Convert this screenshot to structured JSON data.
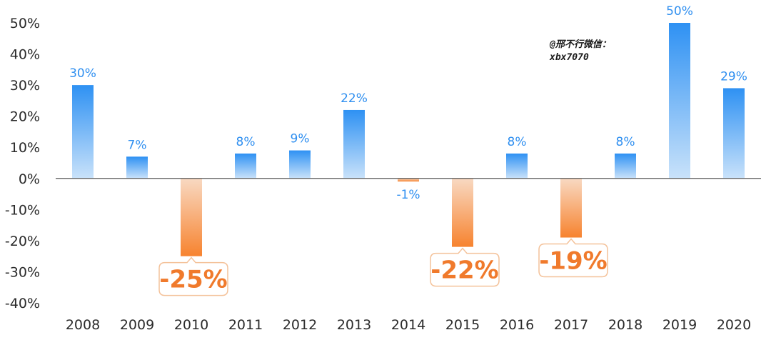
{
  "chart_data": {
    "type": "bar",
    "categories": [
      "2008",
      "2009",
      "2010",
      "2011",
      "2012",
      "2013",
      "2014",
      "2015",
      "2016",
      "2017",
      "2018",
      "2019",
      "2020"
    ],
    "values": [
      30,
      7,
      -25,
      8,
      9,
      22,
      -1,
      -22,
      8,
      -19,
      8,
      50,
      29
    ],
    "data_labels": [
      "30%",
      "7%",
      "-25%",
      "8%",
      "9%",
      "22%",
      "-1%",
      "-22%",
      "8%",
      "-19%",
      "8%",
      "50%",
      "29%"
    ],
    "ylim": [
      -40,
      50
    ],
    "yticks": [
      50,
      40,
      30,
      20,
      10,
      0,
      -10,
      -20,
      -30,
      -40
    ],
    "ytick_labels": [
      "50%",
      "40%",
      "30%",
      "20%",
      "10%",
      "0%",
      "-10%",
      "-20%",
      "-30%",
      "-40%"
    ],
    "colors": {
      "positive_top": "#2e91f3",
      "positive_bottom": "#c9e2fa",
      "negative_top": "#f8d9c2",
      "negative_bottom": "#f7832f",
      "positive_label": "#2f8ff0",
      "negative_label": "#f07a2c",
      "zero_line": "#555555"
    },
    "grid": false,
    "legend": "none"
  },
  "watermark": {
    "line1": "@邢不行微信：",
    "line2": "xbx7070"
  }
}
